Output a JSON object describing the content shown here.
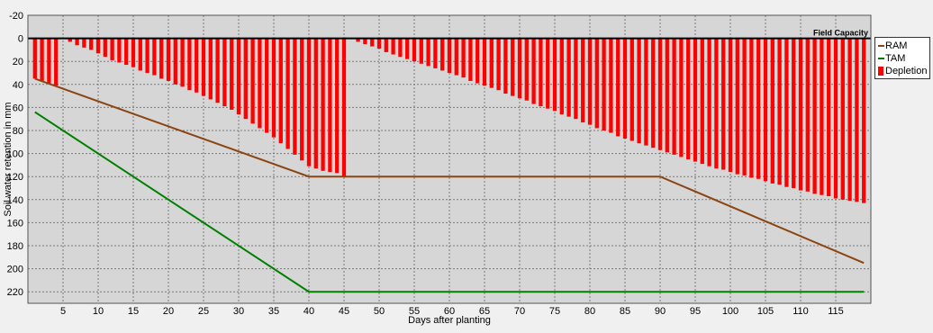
{
  "chart_data": {
    "type": "bar",
    "xlabel": "Days after planting",
    "ylabel": "Soil water retention in mm",
    "xlim": [
      0,
      120
    ],
    "ylim": [
      -20,
      230
    ],
    "y_inverted": true,
    "x_ticks": [
      5,
      10,
      15,
      20,
      25,
      30,
      35,
      40,
      45,
      50,
      55,
      60,
      65,
      70,
      75,
      80,
      85,
      90,
      95,
      100,
      105,
      110,
      115
    ],
    "y_ticks": [
      -20,
      0,
      20,
      40,
      60,
      80,
      100,
      120,
      140,
      160,
      180,
      200,
      220
    ],
    "grid": true,
    "legend_position": "right",
    "reference_line": {
      "label": "Field Capacity",
      "y": 0,
      "color": "#000000"
    },
    "series": [
      {
        "name": "RAM",
        "type": "line",
        "color": "#8b4513",
        "points": [
          [
            1,
            35
          ],
          [
            40,
            120
          ],
          [
            90,
            120
          ],
          [
            119,
            195
          ]
        ]
      },
      {
        "name": "TAM",
        "type": "line",
        "color": "#008000",
        "points": [
          [
            1,
            64
          ],
          [
            40,
            220
          ],
          [
            119,
            220
          ]
        ]
      },
      {
        "name": "Depletion",
        "type": "bar",
        "color": "#ff0000",
        "x": [
          1,
          2,
          3,
          4,
          5,
          6,
          7,
          8,
          9,
          10,
          11,
          12,
          13,
          14,
          15,
          16,
          17,
          18,
          19,
          20,
          21,
          22,
          23,
          24,
          25,
          26,
          27,
          28,
          29,
          30,
          31,
          32,
          33,
          34,
          35,
          36,
          37,
          38,
          39,
          40,
          41,
          42,
          43,
          44,
          45,
          46,
          47,
          48,
          49,
          50,
          51,
          52,
          53,
          54,
          55,
          56,
          57,
          58,
          59,
          60,
          61,
          62,
          63,
          64,
          65,
          66,
          67,
          68,
          69,
          70,
          71,
          72,
          73,
          74,
          75,
          76,
          77,
          78,
          79,
          80,
          81,
          82,
          83,
          84,
          85,
          86,
          87,
          88,
          89,
          90,
          91,
          92,
          93,
          94,
          95,
          96,
          97,
          98,
          99,
          100,
          101,
          102,
          103,
          104,
          105,
          106,
          107,
          108,
          109,
          110,
          111,
          112,
          113,
          114,
          115,
          116,
          117,
          118,
          119
        ],
        "values": [
          35,
          37,
          39,
          41,
          0,
          3,
          6,
          8,
          10,
          13,
          16,
          19,
          21,
          23,
          25,
          28,
          30,
          32,
          35,
          37,
          40,
          42,
          45,
          47,
          50,
          53,
          56,
          59,
          62,
          66,
          70,
          74,
          78,
          82,
          86,
          91,
          96,
          101,
          106,
          111,
          113,
          115,
          116,
          117,
          120,
          0,
          3,
          5,
          7,
          9,
          12,
          14,
          16,
          18,
          20,
          22,
          24,
          26,
          28,
          30,
          32,
          34,
          37,
          39,
          41,
          43,
          45,
          48,
          50,
          52,
          54,
          57,
          59,
          61,
          63,
          66,
          68,
          70,
          73,
          75,
          78,
          80,
          82,
          85,
          87,
          89,
          91,
          93,
          95,
          97,
          99,
          101,
          103,
          105,
          107,
          109,
          111,
          113,
          114,
          116,
          118,
          119,
          121,
          122,
          124,
          126,
          127,
          129,
          130,
          132,
          133,
          135,
          136,
          137,
          139,
          140,
          141,
          142,
          143
        ]
      }
    ]
  }
}
